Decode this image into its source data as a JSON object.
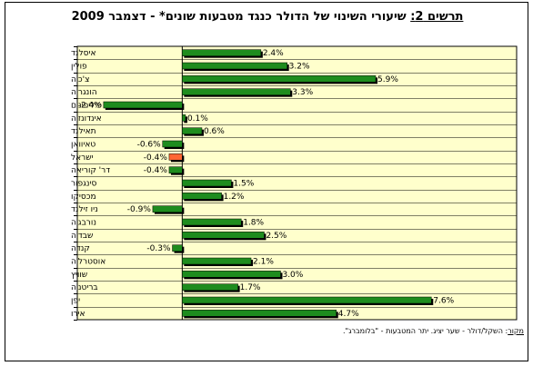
{
  "title": {
    "prefix": "תרשים 2:",
    "text": " שיעורי השינוי של הדולר כנגד מטבעות שונים* - דצמבר 2009"
  },
  "source": {
    "label": "מקור",
    "text": ": השקל/דולר - שער יציג. יתר המטבעות - \"בלומברג\"."
  },
  "colors": {
    "plot_background": "#ffffcc",
    "bar_default": "#1e8c1e",
    "bar_highlight": "#ff6633",
    "bar_shadow": "#000000",
    "gridline": "#000000"
  },
  "chart_data": {
    "type": "bar",
    "orientation": "horizontal",
    "categories": [
      "איסלנד",
      "פולין",
      "צ'כיה",
      "הונגריה",
      "פיליפינים",
      "אינדונזיה",
      "תאילנד",
      "טאיוואן",
      "ישראל",
      "דר' קוריאה",
      "סינגפור",
      "מכסיקו",
      "ניו זילנד",
      "נורבגיה",
      "שבדיה",
      "קנדה",
      "אוסטרליה",
      "שוויץ",
      "בריטניה",
      "יפן",
      "אירו"
    ],
    "values": [
      2.4,
      3.2,
      5.9,
      3.3,
      -2.4,
      0.1,
      0.6,
      -0.6,
      -0.4,
      -0.4,
      1.5,
      1.2,
      -0.9,
      1.8,
      2.5,
      -0.3,
      2.1,
      3.0,
      1.7,
      7.6,
      4.7
    ],
    "value_labels": [
      "2.4%",
      "3.2%",
      "5.9%",
      "3.3%",
      "-2.4%",
      "0.1%",
      "0.6%",
      "-0.6%",
      "-0.4%",
      "-0.4%",
      "1.5%",
      "1.2%",
      "-0.9%",
      "1.8%",
      "2.5%",
      "-0.3%",
      "2.1%",
      "3.0%",
      "1.7%",
      "7.6%",
      "4.7%"
    ],
    "highlight_category": "ישראל",
    "unit": "%",
    "xlim": [
      -3.2,
      10.2
    ],
    "grid": "horizontal",
    "legend": "none"
  }
}
